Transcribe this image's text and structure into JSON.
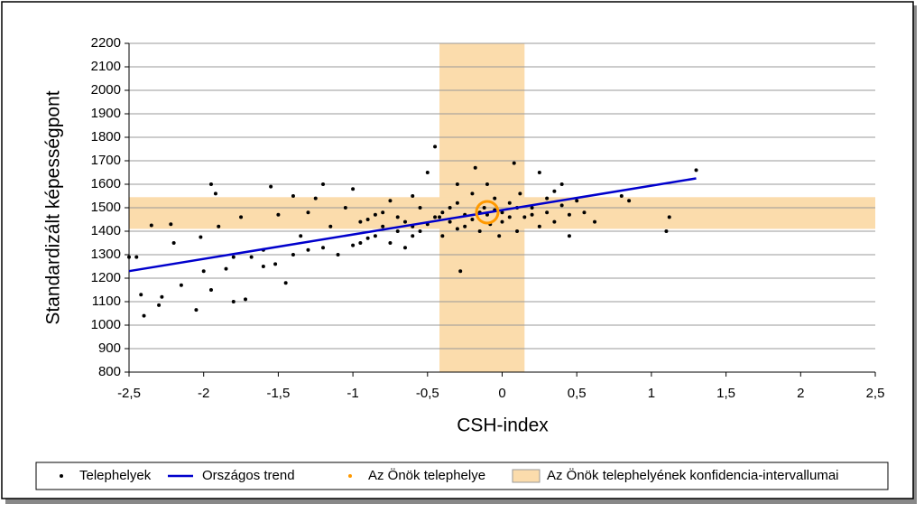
{
  "chart_data": {
    "type": "scatter",
    "xlabel": "CSH-index",
    "ylabel": "Standardizált képességpont",
    "xlim": [
      -2.5,
      2.5
    ],
    "xticks": [
      {
        "value": -2.5,
        "label": "-2,5"
      },
      -2,
      {
        "value": -1.5,
        "label": "-1,5"
      },
      -1,
      {
        "value": -0.5,
        "label": "-0,5"
      },
      0,
      {
        "value": 0.5,
        "label": "0,5"
      },
      1,
      {
        "value": 1.5,
        "label": "1,5"
      },
      2,
      {
        "value": 2.5,
        "label": "2,5"
      }
    ],
    "ylim": [
      800,
      2200
    ],
    "yticks": [
      800,
      900,
      1000,
      1100,
      1200,
      1300,
      1400,
      1500,
      1600,
      1700,
      1800,
      1900,
      2000,
      2100,
      2200
    ],
    "grid": true,
    "band": {
      "name": "Az Önök telephelyének konfidencia-intervallumai",
      "color": "#fbdcac",
      "x": [
        -0.42,
        0.15
      ],
      "y": [
        1410,
        1545
      ]
    },
    "series": [
      {
        "name": "Telephelyek",
        "type": "scatter",
        "color": "#000000",
        "x": [
          -2.45,
          -2.5,
          -2.42,
          -2.4,
          -2.35,
          -2.3,
          -2.28,
          -2.22,
          -2.2,
          -2.15,
          -2.05,
          -2.02,
          -1.95,
          -1.95,
          -1.92,
          -1.9,
          -1.85,
          -1.8,
          -1.75,
          -1.72,
          -1.68,
          -1.6,
          -1.55,
          -1.52,
          -1.5,
          -1.45,
          -1.4,
          -1.35,
          -1.3,
          -1.25,
          -1.2,
          -1.15,
          -1.1,
          -1.05,
          -1.0,
          -0.95,
          -0.9,
          -0.85,
          -0.8,
          -0.75,
          -0.7,
          -0.65,
          -0.6,
          -0.55,
          -0.5,
          -0.45,
          -0.42,
          -0.4,
          -0.35,
          -0.3,
          -0.28,
          -0.25,
          -0.2,
          -0.18,
          -0.15,
          -0.12,
          -0.1,
          -0.08,
          -0.05,
          -0.02,
          0,
          0.05,
          0.08,
          0.1,
          0.12,
          0.15,
          0.2,
          0.25,
          0.3,
          0.35,
          0.4,
          0.45,
          0.5,
          0.55,
          0.62,
          0.8,
          0.85,
          1.1,
          1.12,
          1.3,
          -1.0,
          -0.9,
          -0.8,
          -0.7,
          -0.6,
          -0.5,
          -0.4,
          -0.3,
          -0.2,
          -0.1,
          0,
          0.1,
          0.2,
          0.3,
          0.4,
          -0.75,
          -0.65,
          -0.55,
          -0.45,
          -0.35,
          -0.25,
          -0.15,
          -0.05,
          0.05,
          -1.2,
          -1.3,
          -1.4,
          -1.6,
          -1.8,
          -2.0,
          -0.95,
          -0.85,
          -0.6,
          -0.3,
          0.25,
          0.35,
          0.45
        ],
        "y": [
          1290,
          1290,
          1130,
          1040,
          1425,
          1085,
          1120,
          1430,
          1350,
          1170,
          1065,
          1375,
          1150,
          1600,
          1560,
          1420,
          1240,
          1100,
          1460,
          1110,
          1290,
          1320,
          1590,
          1260,
          1470,
          1180,
          1550,
          1380,
          1480,
          1540,
          1600,
          1420,
          1300,
          1500,
          1580,
          1350,
          1450,
          1380,
          1480,
          1530,
          1400,
          1330,
          1420,
          1500,
          1650,
          1760,
          1460,
          1380,
          1440,
          1520,
          1230,
          1470,
          1560,
          1670,
          1400,
          1500,
          1600,
          1430,
          1540,
          1380,
          1480,
          1520,
          1690,
          1400,
          1560,
          1460,
          1500,
          1650,
          1540,
          1440,
          1600,
          1380,
          1530,
          1480,
          1440,
          1550,
          1530,
          1400,
          1460,
          1660,
          1340,
          1370,
          1420,
          1460,
          1380,
          1430,
          1480,
          1410,
          1450,
          1470,
          1440,
          1500,
          1470,
          1480,
          1510,
          1350,
          1440,
          1400,
          1460,
          1500,
          1420,
          1480,
          1490,
          1460,
          1330,
          1320,
          1300,
          1250,
          1290,
          1230,
          1440,
          1470,
          1550,
          1600,
          1420,
          1570,
          1470
        ]
      },
      {
        "name": "Országos trend",
        "type": "line",
        "color": "#0000cc",
        "x": [
          -2.5,
          1.3
        ],
        "y": [
          1230,
          1625
        ]
      },
      {
        "name": "Az Önök telephelye",
        "type": "scatter",
        "color": "#ff9900",
        "x": [
          -0.1
        ],
        "y": [
          1481
        ]
      }
    ]
  }
}
